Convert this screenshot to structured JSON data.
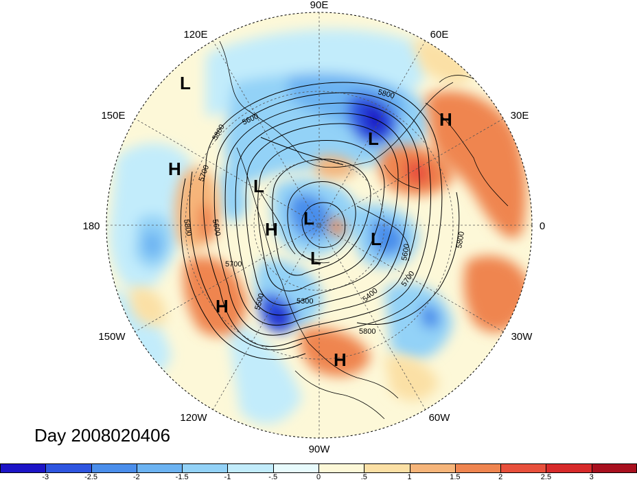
{
  "title": "Day 2008020406",
  "longitude_labels": {
    "top": "90E",
    "top_right": "60E",
    "right_upper": "30E",
    "right": "0",
    "right_lower": "30W",
    "bottom_right": "60W",
    "bottom": "90W",
    "bottom_left": "120W",
    "left_lower": "150W",
    "left": "180",
    "left_upper": "150E",
    "top_left": "120E"
  },
  "pressure_centers": [
    {
      "type": "L",
      "label": "L"
    },
    {
      "type": "H",
      "label": "H"
    },
    {
      "type": "L",
      "label": "L"
    },
    {
      "type": "H",
      "label": "H"
    },
    {
      "type": "L",
      "label": "L"
    },
    {
      "type": "H",
      "label": "H"
    },
    {
      "type": "L",
      "label": "L"
    },
    {
      "type": "L",
      "label": "L"
    },
    {
      "type": "L",
      "label": "L"
    },
    {
      "type": "H",
      "label": "H"
    },
    {
      "type": "H",
      "label": "H"
    }
  ],
  "contour_labels": [
    "5800",
    "5700",
    "5800",
    "5600",
    "5800",
    "5700",
    "5600",
    "5800",
    "5700",
    "5500",
    "5300",
    "5400",
    "5800",
    "5700",
    "5600",
    "5800",
    "5600"
  ],
  "colorbar": {
    "labels": [
      "-3",
      "-2.5",
      "-2",
      "-1.5",
      "-1",
      "-.5",
      "0",
      ".5",
      "1",
      "1.5",
      "2",
      "2.5",
      "3"
    ],
    "colors": [
      "#1c14c6",
      "#2e55e0",
      "#4a8eeb",
      "#6cb3f2",
      "#93d2f7",
      "#c2ecfb",
      "#e8fbfd",
      "#fdf8d8",
      "#fbe0a5",
      "#f6b57a",
      "#ef8550",
      "#e8503c",
      "#d72a2a",
      "#a8101e"
    ]
  },
  "colors": {
    "ocean_neutral": "#fdf8d8",
    "cold_anomaly": "#4a8eeb",
    "warm_anomaly": "#ef8550",
    "contour": "#000000",
    "coast": "#000000"
  }
}
